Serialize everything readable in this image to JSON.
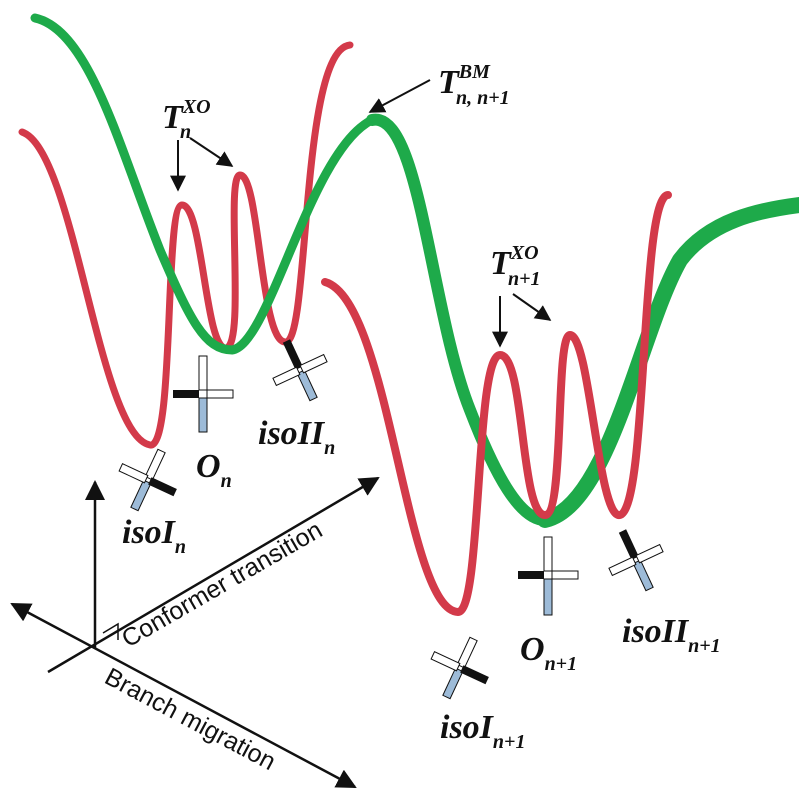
{
  "colors": {
    "background": "#ffffff",
    "red_curve": "#d33a4a",
    "green_curve": "#1eaa4a",
    "ink": "#111111",
    "blue_arm": "#9dbbd8",
    "white_arm": "#ffffff",
    "black_arm": "#111111"
  },
  "labels": {
    "txo_n": {
      "base": "T",
      "sub": "n",
      "sup": "XO"
    },
    "tbm": {
      "base": "T",
      "sub": "n, n+1",
      "sup": "BM"
    },
    "txo_n1": {
      "base": "T",
      "sub": "n+1",
      "sup": "XO"
    },
    "iso1_n": {
      "base": "isoI",
      "sub": "n"
    },
    "o_n": {
      "base": "O",
      "sub": "n"
    },
    "iso2_n": {
      "base": "isoII",
      "sub": "n"
    },
    "iso1_n1": {
      "base": "isoI",
      "sub": "n+1"
    },
    "o_n1": {
      "base": "O",
      "sub": "n+1"
    },
    "iso2_n1": {
      "base": "isoII",
      "sub": "n+1"
    }
  },
  "axes": {
    "conformer": "Conformer transition",
    "branch": "Branch migration"
  }
}
